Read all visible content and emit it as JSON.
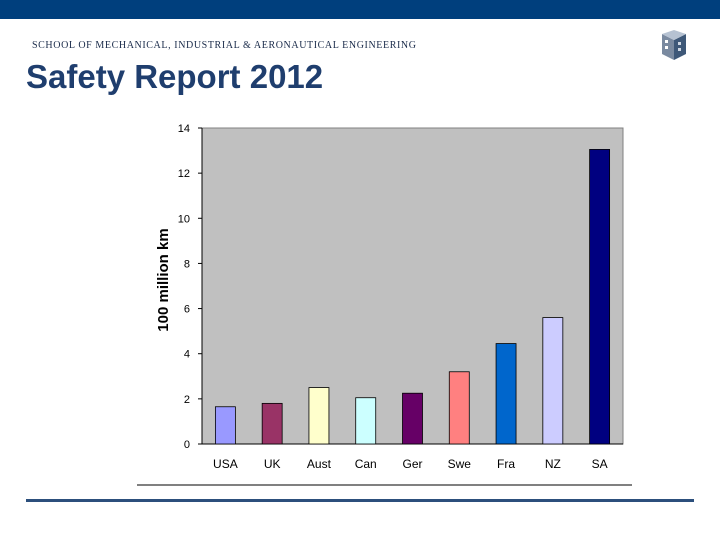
{
  "header": {
    "school_name": "SCHOOL OF MECHANICAL, INDUSTRIAL & AERONAUTICAL ENGINEERING",
    "title": "Safety Report 2012",
    "brand_color": "#003f7d",
    "logo_icon": "wits-cube-logo-icon"
  },
  "chart_data": {
    "type": "bar",
    "title": "",
    "xlabel": "",
    "ylabel": "100 million km",
    "ylim": [
      0,
      14
    ],
    "yticks": [
      0,
      2,
      4,
      6,
      8,
      10,
      12,
      14
    ],
    "grid": false,
    "legend": "none",
    "plot_background": "#c0c0c0",
    "categories": [
      "USA",
      "UK",
      "Aust",
      "Can",
      "Ger",
      "Swe",
      "Fra",
      "NZ",
      "SA"
    ],
    "values": [
      1.65,
      1.8,
      2.5,
      2.05,
      2.25,
      3.2,
      4.45,
      5.6,
      13.05
    ],
    "colors": [
      "#9999ff",
      "#993366",
      "#ffffcc",
      "#ccffff",
      "#660066",
      "#ff8080",
      "#0066cc",
      "#ccccff",
      "#000080"
    ]
  }
}
